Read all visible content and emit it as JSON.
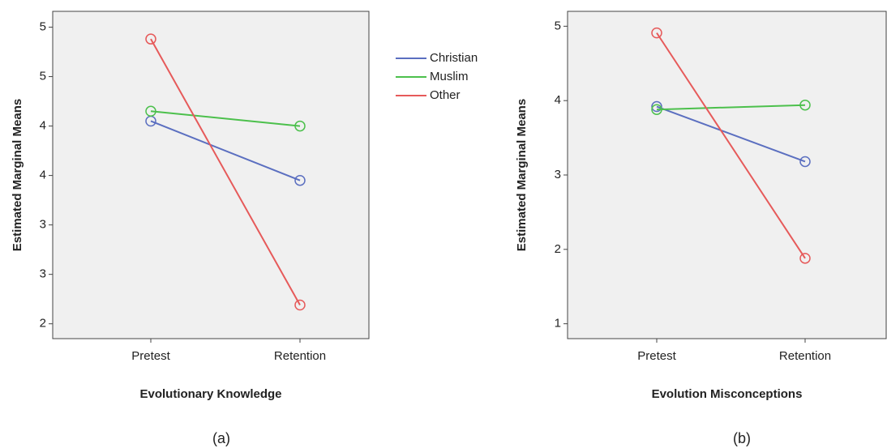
{
  "chart_data": [
    {
      "type": "line",
      "caption": "(a)",
      "x_label": "Evolutionary Knowledge",
      "y_label": "Estimated Marginal Means",
      "categories": [
        "Pretest",
        "Retention"
      ],
      "series": [
        {
          "name": "Christian",
          "color": "#5b6fc0",
          "values": [
            4.05,
            3.45
          ]
        },
        {
          "name": "Muslim",
          "color": "#4cc04c",
          "values": [
            4.15,
            4.0
          ]
        },
        {
          "name": "Other",
          "color": "#e65a5a",
          "values": [
            4.88,
            2.19
          ]
        }
      ],
      "ylim": [
        1.85,
        5.16
      ],
      "yticks": [
        {
          "value": 2,
          "label": "2"
        },
        {
          "value": 2.5,
          "label": "3"
        },
        {
          "value": 3,
          "label": "3"
        },
        {
          "value": 3.5,
          "label": "4"
        },
        {
          "value": 4,
          "label": "4"
        },
        {
          "value": 4.5,
          "label": "5"
        },
        {
          "value": 5,
          "label": "5"
        }
      ],
      "legend": true
    },
    {
      "type": "line",
      "caption": "(b)",
      "x_label": "Evolution Misconceptions",
      "y_label": "Estimated Marginal Means",
      "categories": [
        "Pretest",
        "Retention"
      ],
      "series": [
        {
          "name": "Christian",
          "color": "#5b6fc0",
          "values": [
            3.92,
            3.18
          ]
        },
        {
          "name": "Muslim",
          "color": "#4cc04c",
          "values": [
            3.88,
            3.94
          ]
        },
        {
          "name": "Other",
          "color": "#e65a5a",
          "values": [
            4.91,
            1.88
          ]
        }
      ],
      "ylim": [
        0.8,
        5.2
      ],
      "yticks": [
        1,
        2,
        3,
        4,
        5
      ],
      "legend": false
    }
  ]
}
